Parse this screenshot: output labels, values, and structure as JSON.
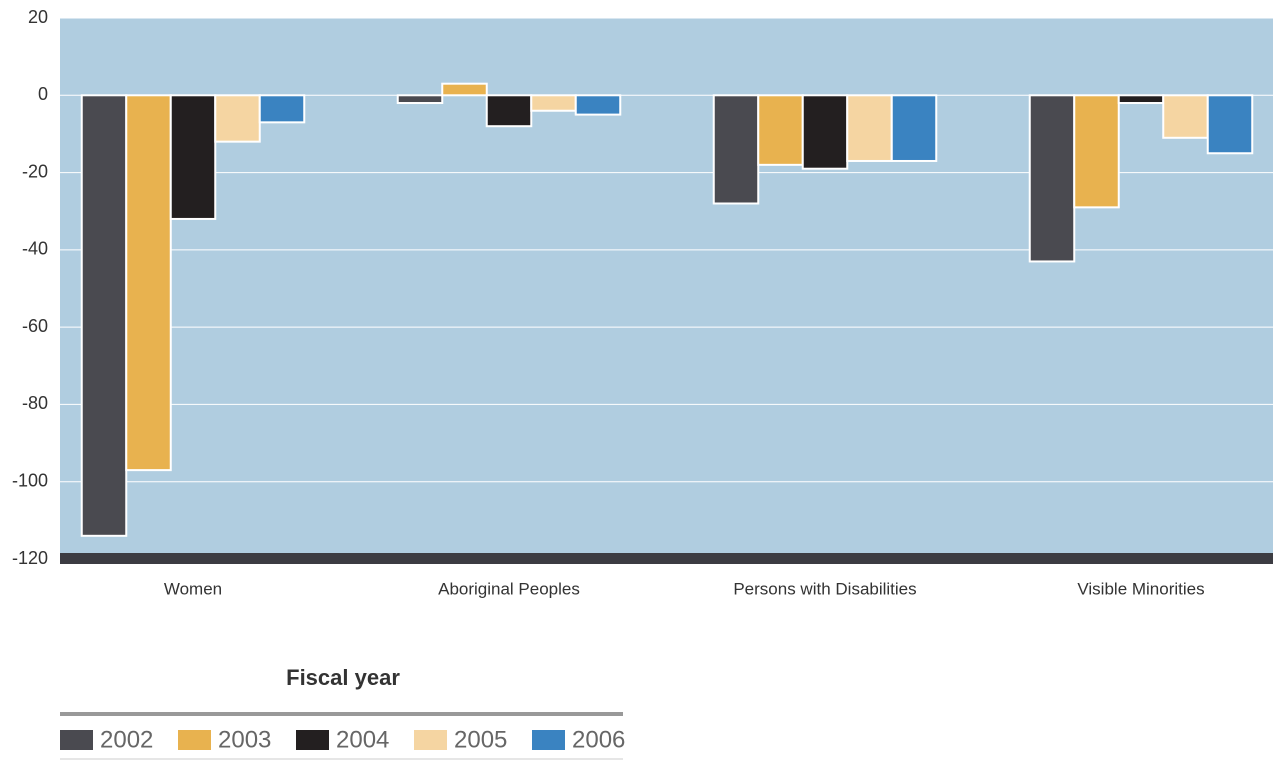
{
  "chart_data": {
    "type": "bar",
    "categories": [
      "Women",
      "Aboriginal Peoples",
      "Persons with Disabilities",
      "Visible Minorities"
    ],
    "series": [
      {
        "name": "2002",
        "color": "#4a4a50",
        "values": [
          -114,
          -2,
          -28,
          -43
        ]
      },
      {
        "name": "2003",
        "color": "#e8b24f",
        "values": [
          -97,
          3,
          -18,
          -29
        ]
      },
      {
        "name": "2004",
        "color": "#231f20",
        "values": [
          -32,
          -8,
          -19,
          -2
        ]
      },
      {
        "name": "2005",
        "color": "#f5d5a2",
        "values": [
          -12,
          -4,
          -17,
          -11
        ]
      },
      {
        "name": "2006",
        "color": "#3a83c1",
        "values": [
          -7,
          -5,
          -17,
          -15
        ]
      }
    ],
    "legend_title": "Fiscal year",
    "ylim": [
      -120,
      20
    ],
    "yticks": [
      20,
      0,
      -20,
      -40,
      -60,
      -80,
      -100,
      -120
    ],
    "grid": true
  }
}
